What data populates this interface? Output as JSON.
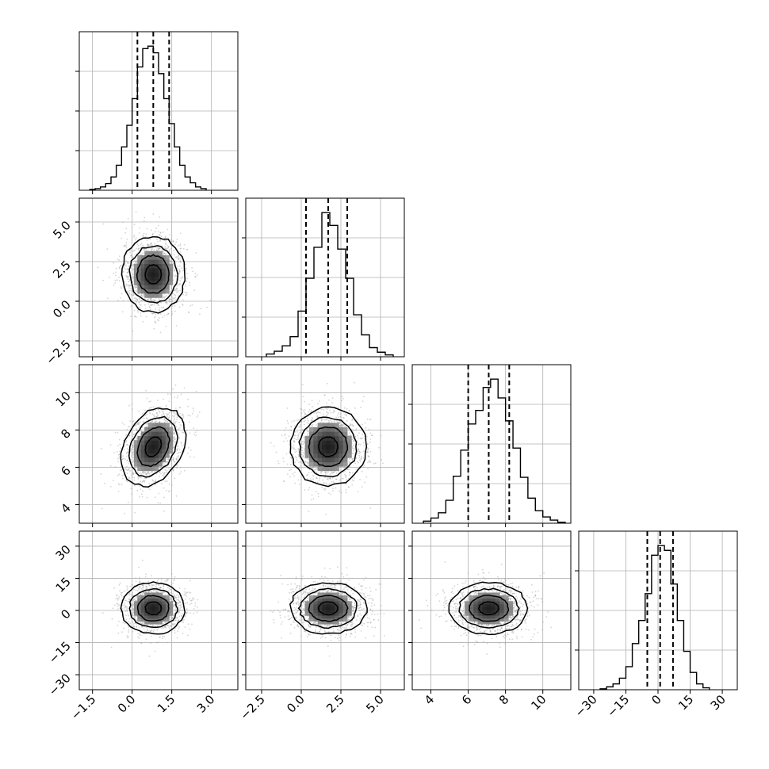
{
  "chart_data": {
    "type": "corner",
    "variables": 4,
    "colors": {
      "ink": "#000000",
      "points": "#a0a0a0",
      "grid": "#b0b0b0",
      "fill_dark": "#222222"
    },
    "grid": true,
    "axes": [
      {
        "range": [
          -2.0,
          4.0
        ],
        "ticks": [
          -1.5,
          0.0,
          1.5,
          3.0
        ],
        "tick_labels": [
          "−1.5",
          "0.0",
          "1.5",
          "3.0"
        ],
        "mean": 0.8,
        "sd": 0.6,
        "quantiles": [
          0.2,
          0.8,
          1.4
        ]
      },
      {
        "range": [
          -3.5,
          6.5
        ],
        "ticks": [
          -2.5,
          0.0,
          2.5,
          5.0
        ],
        "tick_labels": [
          "−2.5",
          "0.0",
          "2.5",
          "5.0"
        ],
        "mean": 1.7,
        "sd": 1.2,
        "quantiles": [
          0.3,
          1.7,
          2.9
        ]
      },
      {
        "range": [
          3.0,
          11.5
        ],
        "ticks": [
          4,
          6,
          8,
          10
        ],
        "tick_labels": [
          "4",
          "6",
          "8",
          "10"
        ],
        "mean": 7.1,
        "sd": 1.05,
        "quantiles": [
          6.0,
          7.1,
          8.2
        ]
      },
      {
        "range": [
          -37,
          37
        ],
        "ticks": [
          -30,
          -15,
          0,
          15,
          30
        ],
        "tick_labels": [
          "−30",
          "−15",
          "0",
          "15",
          "30"
        ],
        "mean": 1.0,
        "sd": 6.0,
        "quantiles": [
          -5,
          1,
          7
        ]
      }
    ],
    "histograms": [
      {
        "bins": [
          -1.6,
          -1.4,
          -1.2,
          -1.0,
          -0.8,
          -0.6,
          -0.4,
          -0.2,
          0.0,
          0.2,
          0.4,
          0.6,
          0.8,
          1.0,
          1.2,
          1.4,
          1.6,
          1.8,
          2.0,
          2.2,
          2.4,
          2.6,
          2.8
        ],
        "counts": [
          1,
          2,
          4,
          8,
          16,
          30,
          52,
          78,
          110,
          148,
          170,
          173,
          165,
          140,
          110,
          80,
          52,
          30,
          16,
          9,
          4,
          2
        ]
      },
      {
        "bins": [
          -2.2,
          -1.7,
          -1.2,
          -0.7,
          -0.2,
          0.3,
          0.8,
          1.3,
          1.8,
          2.3,
          2.8,
          3.3,
          3.8,
          4.3,
          4.8,
          5.3,
          5.8
        ],
        "counts": [
          3,
          6,
          12,
          22,
          50,
          86,
          120,
          158,
          144,
          118,
          86,
          46,
          24,
          10,
          5,
          2
        ]
      },
      {
        "bins": [
          3.6,
          4.0,
          4.4,
          4.8,
          5.2,
          5.6,
          6.0,
          6.4,
          6.8,
          7.2,
          7.6,
          8.0,
          8.4,
          8.8,
          9.2,
          9.6,
          10.0,
          10.4,
          10.8,
          11.2
        ],
        "counts": [
          2,
          5,
          10,
          22,
          45,
          70,
          95,
          108,
          130,
          138,
          120,
          98,
          72,
          44,
          24,
          12,
          6,
          3,
          1
        ]
      },
      {
        "bins": [
          -27,
          -24,
          -21,
          -18,
          -15,
          -12,
          -9,
          -6,
          -3,
          0,
          3,
          6,
          9,
          12,
          15,
          18,
          21,
          24
        ],
        "counts": [
          1,
          3,
          6,
          12,
          24,
          48,
          72,
          100,
          140,
          150,
          145,
          110,
          72,
          40,
          18,
          6,
          2
        ]
      }
    ],
    "pairs": [
      {
        "row": 1,
        "col": 0,
        "correlation": 0.0
      },
      {
        "row": 2,
        "col": 0,
        "correlation": 0.3
      },
      {
        "row": 2,
        "col": 1,
        "correlation": 0.0
      },
      {
        "row": 3,
        "col": 0,
        "correlation": 0.0
      },
      {
        "row": 3,
        "col": 1,
        "correlation": 0.0
      },
      {
        "row": 3,
        "col": 2,
        "correlation": 0.0
      }
    ],
    "contour_levels_sigma": [
      0.5,
      1.0,
      1.5,
      2.0
    ]
  }
}
